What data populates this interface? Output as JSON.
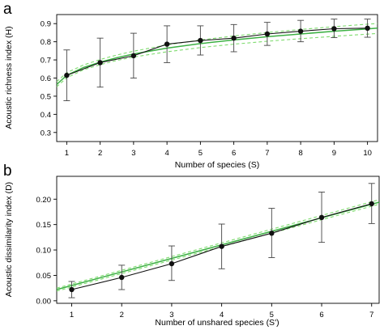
{
  "chart_data": [
    {
      "type": "line",
      "panel_label": "a",
      "xlabel": "Number of species (S)",
      "ylabel": "Acoustic richness index (H)",
      "xlim": [
        0.7,
        10.3
      ],
      "ylim": [
        0.25,
        0.95
      ],
      "xticks": [
        1,
        2,
        3,
        4,
        5,
        6,
        7,
        8,
        9,
        10
      ],
      "yticks": [
        0.3,
        0.4,
        0.5,
        0.6,
        0.7,
        0.8,
        0.9
      ],
      "yticklabels": [
        "0.3",
        "0.4",
        "0.5",
        "0.6",
        "0.7",
        "0.8",
        "0.9"
      ],
      "grid": false,
      "observed": {
        "x": [
          1,
          2,
          3,
          4,
          5,
          6,
          7,
          8,
          9,
          10
        ],
        "mean": [
          0.615,
          0.685,
          0.723,
          0.787,
          0.807,
          0.82,
          0.843,
          0.858,
          0.872,
          0.875
        ],
        "lower": [
          0.475,
          0.55,
          0.6,
          0.685,
          0.727,
          0.745,
          0.78,
          0.8,
          0.823,
          0.825
        ],
        "upper": [
          0.755,
          0.82,
          0.847,
          0.888,
          0.888,
          0.895,
          0.907,
          0.918,
          0.925,
          0.925
        ],
        "color": "#111111"
      },
      "fit": {
        "x": [
          0.7,
          1,
          1.5,
          2,
          2.5,
          3,
          4,
          5,
          6,
          7,
          8,
          9,
          10,
          10.3
        ],
        "y": [
          0.565,
          0.615,
          0.658,
          0.688,
          0.712,
          0.733,
          0.765,
          0.79,
          0.81,
          0.828,
          0.843,
          0.858,
          0.871,
          0.875
        ],
        "lower": [
          0.552,
          0.602,
          0.645,
          0.674,
          0.697,
          0.716,
          0.745,
          0.768,
          0.787,
          0.803,
          0.817,
          0.83,
          0.842,
          0.846
        ],
        "upper": [
          0.58,
          0.63,
          0.672,
          0.702,
          0.727,
          0.748,
          0.783,
          0.81,
          0.832,
          0.851,
          0.868,
          0.883,
          0.897,
          0.901
        ],
        "color": "#3cb043",
        "band_color": "#7fdc6f"
      }
    },
    {
      "type": "line",
      "panel_label": "b",
      "xlabel": "Number of unshared species (S')",
      "ylabel": "Acoustic dissimilarity index (D)",
      "xlim": [
        0.7,
        7.15
      ],
      "ylim": [
        -0.005,
        0.245
      ],
      "xticks": [
        1,
        2,
        3,
        4,
        5,
        6,
        7
      ],
      "yticks": [
        0.0,
        0.05,
        0.1,
        0.15,
        0.2
      ],
      "yticklabels": [
        "0.00",
        "0.05",
        "0.10",
        "0.15",
        "0.20"
      ],
      "grid": false,
      "observed": {
        "x": [
          1,
          2,
          3,
          4,
          5,
          6,
          7
        ],
        "mean": [
          0.022,
          0.046,
          0.073,
          0.107,
          0.133,
          0.164,
          0.191
        ],
        "lower": [
          0.006,
          0.022,
          0.04,
          0.063,
          0.085,
          0.115,
          0.152
        ],
        "upper": [
          0.038,
          0.07,
          0.108,
          0.151,
          0.182,
          0.214,
          0.231
        ],
        "color": "#111111"
      },
      "fit": {
        "x": [
          0.7,
          7.15
        ],
        "y": [
          0.022,
          0.194
        ],
        "lower": [
          0.019,
          0.19
        ],
        "upper": [
          0.025,
          0.199
        ],
        "color": "#3cb043",
        "band_color": "#7fdc6f"
      }
    }
  ]
}
